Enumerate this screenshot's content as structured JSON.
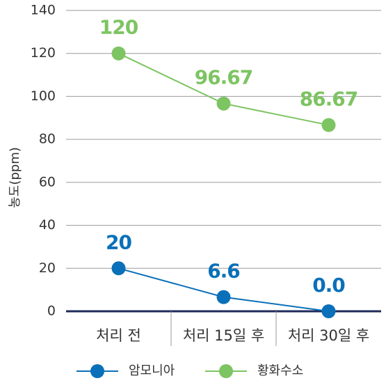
{
  "chart_data": {
    "type": "line",
    "ylabel": "농도(ppm)",
    "categories": [
      "처리 전",
      "처리 15일 후",
      "처리 30일 후"
    ],
    "series": [
      {
        "name": "암모니아",
        "color": "#0a70b9",
        "values": [
          20,
          6.6,
          0.0
        ],
        "value_labels": [
          "20",
          "6.6",
          "0.0"
        ]
      },
      {
        "name": "황화수소",
        "color": "#7dc462",
        "values": [
          120,
          96.67,
          86.67
        ]
      }
    ],
    "ylim": [
      0,
      140
    ],
    "yticks": [
      0,
      20,
      40,
      60,
      80,
      100,
      120,
      140
    ],
    "grid": true
  }
}
